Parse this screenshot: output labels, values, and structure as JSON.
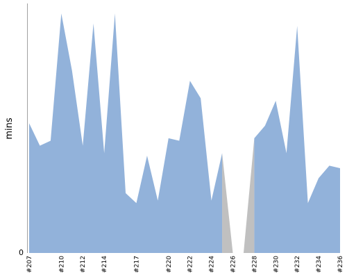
{
  "chart_data": {
    "type": "area",
    "ylabel": "mins",
    "y_tick_labels": [
      "0"
    ],
    "ylim": [
      0,
      100
    ],
    "x": [
      "#207",
      "#208",
      "#209",
      "#210",
      "#211",
      "#212",
      "#213",
      "#214",
      "#215",
      "#216",
      "#217",
      "#218",
      "#219",
      "#220",
      "#221",
      "#222",
      "#223",
      "#224",
      "#225",
      "#226",
      "#227",
      "#228",
      "#229",
      "#230",
      "#231",
      "#232",
      "#233",
      "#234",
      "#235",
      "#236"
    ],
    "x_tick_labels": [
      "#207",
      "#210",
      "#212",
      "#214",
      "#217",
      "#220",
      "#222",
      "#224",
      "#226",
      "#228",
      "#230",
      "#232",
      "#234",
      "#236"
    ],
    "series": [
      {
        "color": "#92b2da",
        "values": [
          52,
          43,
          45,
          96,
          73,
          43,
          92,
          40,
          96,
          24,
          20,
          39,
          21,
          46,
          45,
          69,
          62,
          21,
          40,
          null,
          null,
          46,
          51,
          61,
          40,
          91,
          20,
          30,
          35,
          34
        ]
      }
    ],
    "gap_fill_color": "#c0c0c0",
    "grid": false,
    "legend": "none"
  }
}
